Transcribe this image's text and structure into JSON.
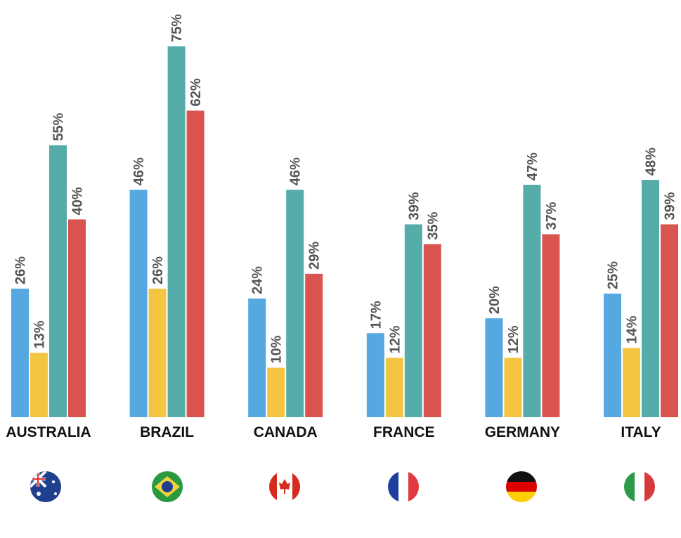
{
  "chart_data": {
    "type": "bar",
    "categories": [
      "AUSTRALIA",
      "BRAZIL",
      "CANADA",
      "FRANCE",
      "GERMANY",
      "ITALY"
    ],
    "series": [
      {
        "color": "#55a9e0",
        "values": [
          26,
          46,
          24,
          17,
          20,
          25
        ],
        "value_labels": [
          "26%",
          "46%",
          "24%",
          "17%",
          "20%",
          "25%"
        ]
      },
      {
        "color": "#f4c542",
        "values": [
          13,
          26,
          10,
          12,
          12,
          14
        ],
        "value_labels": [
          "13%",
          "26%",
          "10%",
          "12%",
          "12%",
          "14%"
        ]
      },
      {
        "color": "#56aca9",
        "values": [
          55,
          75,
          46,
          39,
          47,
          48
        ],
        "value_labels": [
          "55%",
          "75%",
          "46%",
          "39%",
          "47%",
          "48%"
        ]
      },
      {
        "color": "#d9534f",
        "values": [
          40,
          62,
          29,
          35,
          37,
          39
        ],
        "value_labels": [
          "40%",
          "62%",
          "29%",
          "35%",
          "37%",
          "39%"
        ]
      }
    ]
  }
}
